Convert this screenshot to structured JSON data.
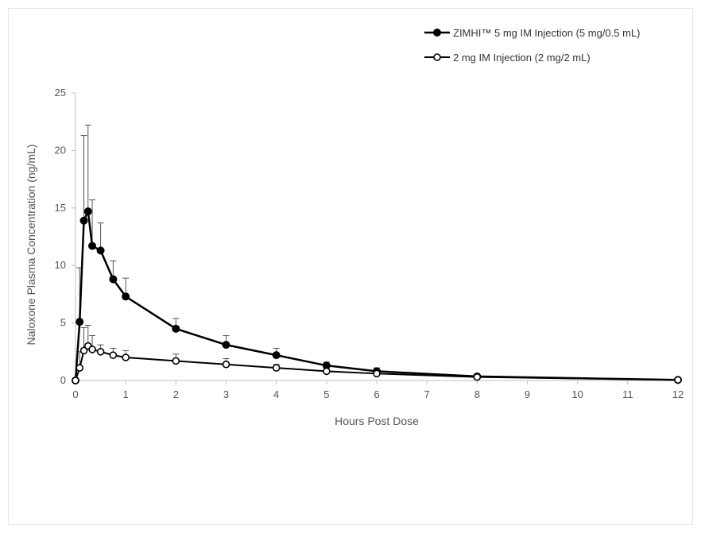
{
  "chart_data": {
    "type": "line",
    "title": "",
    "xlabel": "Hours Post Dose",
    "ylabel": "Naloxone Plasma Concentration (ng/mL)",
    "xlim": [
      0,
      12
    ],
    "ylim": [
      0,
      25
    ],
    "xticks": [
      "0",
      "1",
      "2",
      "3",
      "4",
      "5",
      "6",
      "7",
      "8",
      "9",
      "10",
      "11",
      "12"
    ],
    "yticks": [
      "0",
      "5",
      "10",
      "15",
      "20",
      "25"
    ],
    "grid": false,
    "legend_position": "top-right",
    "series": [
      {
        "name": "ZIMHI™ 5 mg IM Injection (5 mg/0.5 mL)",
        "marker": "filled-circle",
        "color": "#000000",
        "x": [
          0,
          0.083,
          0.167,
          0.25,
          0.333,
          0.5,
          0.75,
          1,
          2,
          3,
          4,
          5,
          6,
          8,
          12
        ],
        "y": [
          0,
          5.1,
          13.9,
          14.7,
          11.7,
          11.3,
          8.8,
          7.3,
          4.5,
          3.1,
          2.2,
          1.3,
          0.8,
          0.35,
          0.05
        ],
        "error_upper": [
          0,
          9.8,
          21.3,
          22.2,
          15.7,
          13.7,
          10.4,
          8.9,
          5.4,
          3.9,
          2.8,
          1.6,
          1.1,
          0.5,
          0.15
        ]
      },
      {
        "name": "2 mg IM Injection (2 mg/2 mL)",
        "marker": "open-circle",
        "color": "#000000",
        "x": [
          0,
          0.083,
          0.167,
          0.25,
          0.333,
          0.5,
          0.75,
          1,
          2,
          3,
          4,
          5,
          6,
          8,
          12
        ],
        "y": [
          0,
          1.1,
          2.6,
          3.0,
          2.7,
          2.5,
          2.2,
          2.0,
          1.7,
          1.4,
          1.1,
          0.8,
          0.6,
          0.3,
          0.05
        ],
        "error_upper": [
          0,
          2.5,
          4.6,
          4.8,
          3.9,
          3.1,
          2.8,
          2.6,
          2.3,
          1.9,
          1.4,
          1.1,
          0.9,
          0.45,
          0.15
        ]
      }
    ]
  }
}
